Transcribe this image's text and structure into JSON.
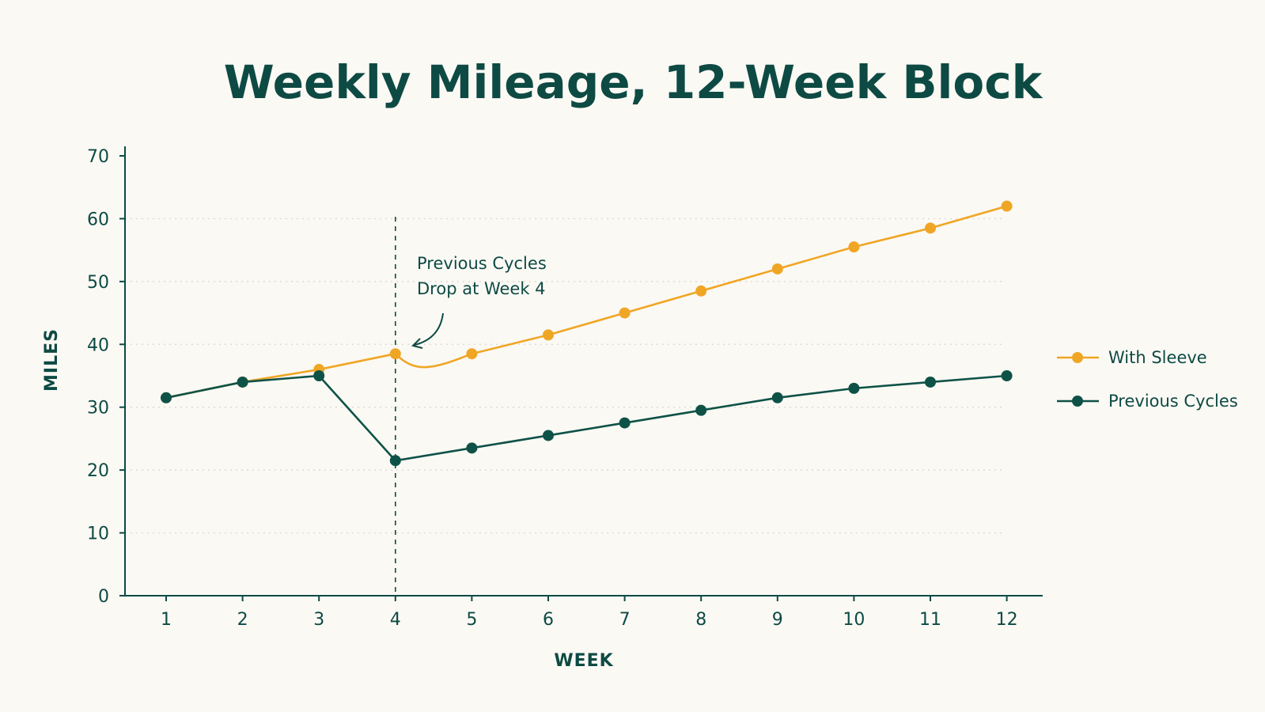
{
  "colors": {
    "background": "#fbf9f4",
    "text": "#0e4a44",
    "axis": "#0e4a44",
    "grid": "#d9d6cf",
    "with_sleeve": "#f0a625",
    "previous": "#0e5247"
  },
  "chart_data": {
    "type": "line",
    "title": "Weekly Mileage, 12-Week Block",
    "xlabel": "WEEK",
    "ylabel": "MILES",
    "ylim": [
      0,
      70
    ],
    "yticks": [
      0,
      10,
      20,
      30,
      40,
      50,
      60,
      70
    ],
    "x": [
      1,
      2,
      3,
      4,
      5,
      6,
      7,
      8,
      9,
      10,
      11,
      12
    ],
    "grid": "horizontal dotted",
    "legend_position": "right",
    "series": [
      {
        "name": "With Sleeve",
        "color": "#f0a625",
        "values": [
          31.5,
          34,
          36,
          38.5,
          38.5,
          41.5,
          45,
          48.5,
          52,
          55.5,
          58.5,
          62
        ]
      },
      {
        "name": "Previous Cycles",
        "color": "#0e5247",
        "values": [
          31.5,
          34,
          35,
          21.5,
          23.5,
          25.5,
          27.5,
          29.5,
          31.5,
          33,
          34,
          35
        ]
      }
    ],
    "annotation": {
      "x": 4,
      "lines": [
        "Previous Cycles",
        "Drop at Week 4"
      ]
    }
  }
}
